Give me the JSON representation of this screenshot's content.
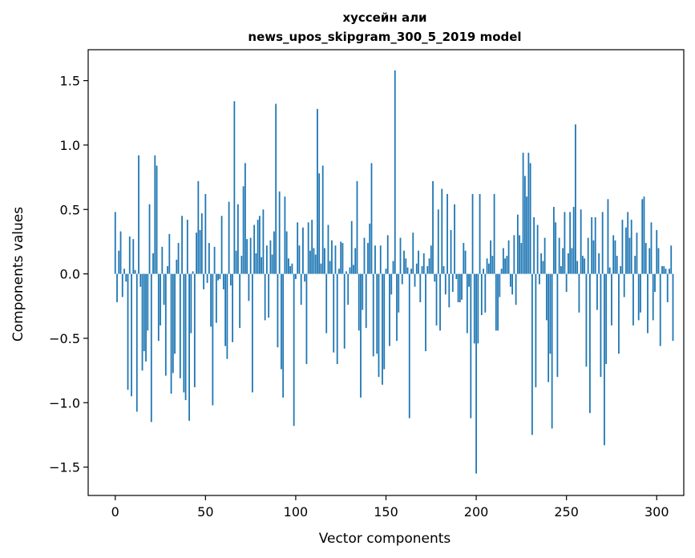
{
  "chart_data": {
    "type": "bar",
    "title": "хуссейн али",
    "subtitle": "news_upos_skipgram_300_5_2019 model",
    "xlabel": "Vector components",
    "ylabel": "Components values",
    "xlim": [
      -15,
      315
    ],
    "ylim": [
      -1.72,
      1.74
    ],
    "xticks": [
      0,
      50,
      100,
      150,
      200,
      250,
      300
    ],
    "xtick_labels": [
      "0",
      "50",
      "100",
      "150",
      "200",
      "250",
      "300"
    ],
    "yticks": [
      -1.5,
      -1.0,
      -0.5,
      0.0,
      0.5,
      1.0,
      1.5
    ],
    "ytick_labels": [
      "−1.5",
      "−1.0",
      "−0.5",
      "0.0",
      "0.5",
      "1.0",
      "1.5"
    ],
    "bar_color": "#1f77b4",
    "grid": false,
    "values": [
      0.48,
      -0.22,
      0.18,
      0.33,
      -0.18,
      0.04,
      -0.06,
      -0.9,
      0.29,
      -0.95,
      0.27,
      0.03,
      -1.07,
      0.92,
      -0.1,
      -0.75,
      -0.6,
      -0.68,
      -0.44,
      0.54,
      -1.15,
      0.16,
      0.92,
      0.84,
      -0.52,
      -0.4,
      0.21,
      -0.24,
      -0.79,
      0.06,
      0.31,
      -0.93,
      -0.77,
      -0.62,
      0.11,
      0.24,
      -0.81,
      0.45,
      -0.92,
      -0.98,
      0.42,
      -1.14,
      -0.46,
      0.02,
      -0.88,
      0.32,
      0.72,
      0.34,
      0.47,
      -0.12,
      0.62,
      -0.07,
      0.24,
      -0.41,
      -1.02,
      0.21,
      -0.38,
      -0.05,
      -0.04,
      0.45,
      -0.12,
      -0.56,
      -0.66,
      0.56,
      -0.09,
      -0.53,
      1.34,
      0.18,
      0.54,
      -0.42,
      0.14,
      0.68,
      0.86,
      0.27,
      -0.21,
      0.28,
      -0.92,
      0.38,
      0.16,
      0.42,
      0.45,
      0.13,
      0.5,
      -0.36,
      0.22,
      -0.34,
      0.26,
      0.15,
      0.33,
      1.32,
      -0.57,
      0.64,
      -0.74,
      -0.96,
      0.6,
      0.33,
      0.12,
      0.06,
      0.08,
      -1.18,
      -0.04,
      0.4,
      0.22,
      -0.24,
      0.36,
      -0.06,
      -0.7,
      0.4,
      0.18,
      0.42,
      0.2,
      0.15,
      1.28,
      0.78,
      0.08,
      0.84,
      0.2,
      -0.46,
      0.38,
      0.1,
      0.26,
      -0.61,
      0.22,
      -0.7,
      0.04,
      0.25,
      0.24,
      -0.58,
      0.02,
      -0.24,
      0.05,
      0.41,
      0.07,
      0.2,
      0.72,
      -0.44,
      -0.96,
      -0.28,
      0.28,
      -0.42,
      0.24,
      0.39,
      0.86,
      -0.64,
      0.22,
      -0.62,
      -0.8,
      0.22,
      -0.86,
      -0.74,
      0.04,
      0.3,
      -0.56,
      -0.16,
      0.1,
      1.58,
      -0.52,
      -0.3,
      0.28,
      -0.08,
      0.18,
      0.12,
      0.05,
      -1.12,
      0.04,
      0.32,
      -0.1,
      0.08,
      0.18,
      -0.22,
      0.06,
      0.16,
      -0.6,
      0.06,
      0.12,
      0.22,
      0.72,
      -0.06,
      -0.4,
      0.5,
      -0.44,
      0.66,
      0.06,
      -0.16,
      0.62,
      -0.26,
      0.34,
      -0.14,
      0.54,
      -0.04,
      -0.22,
      -0.22,
      -0.2,
      0.24,
      0.18,
      -0.46,
      -0.1,
      -1.12,
      0.62,
      -0.54,
      -1.55,
      -0.54,
      0.62,
      -0.32,
      0.04,
      -0.3,
      0.12,
      0.08,
      0.26,
      0.14,
      0.62,
      -0.44,
      -0.44,
      -0.18,
      0.04,
      0.2,
      0.12,
      0.14,
      0.26,
      -0.1,
      -0.16,
      0.3,
      -0.24,
      0.46,
      0.3,
      0.24,
      0.94,
      0.76,
      0.6,
      0.94,
      0.86,
      -1.25,
      0.44,
      -0.88,
      0.38,
      -0.08,
      0.16,
      0.1,
      0.28,
      -0.36,
      -0.84,
      -0.62,
      -1.2,
      0.52,
      0.4,
      -0.8,
      0.28,
      0.06,
      0.2,
      0.48,
      -0.14,
      0.16,
      0.48,
      0.2,
      0.52,
      1.16,
      0.1,
      -0.3,
      0.5,
      0.14,
      0.12,
      -0.72,
      0.28,
      -1.08,
      0.44,
      0.26,
      0.44,
      -0.28,
      0.16,
      -0.8,
      0.48,
      -1.33,
      -0.7,
      0.58,
      0.05,
      -0.4,
      0.3,
      0.26,
      0.14,
      -0.62,
      0.06,
      0.42,
      -0.18,
      0.36,
      0.48,
      0.28,
      0.42,
      -0.4,
      0.14,
      0.32,
      -0.36,
      -0.3,
      0.58,
      0.6,
      0.24,
      -0.46,
      0.2,
      0.4,
      -0.36,
      -0.14,
      0.34,
      0.2,
      -0.56,
      0.06,
      0.06,
      0.04,
      -0.22,
      0.04,
      0.22,
      -0.52
    ]
  }
}
